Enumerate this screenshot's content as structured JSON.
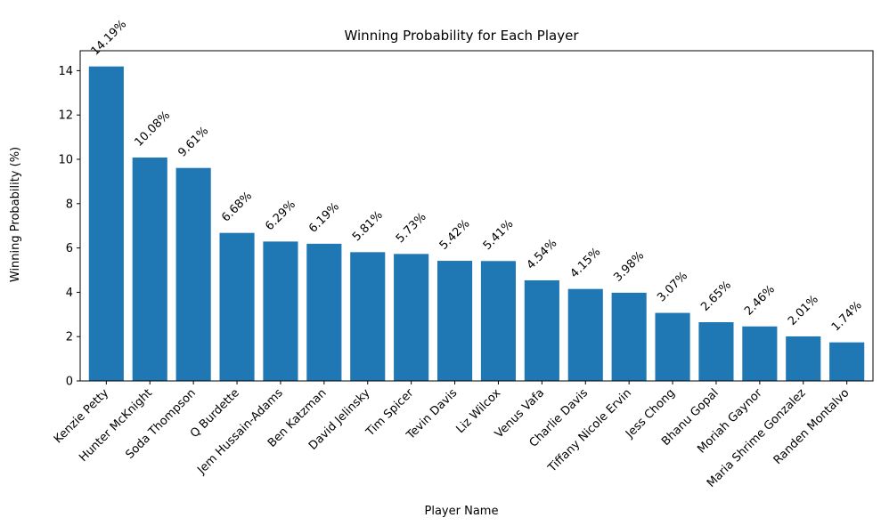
{
  "chart_data": {
    "type": "bar",
    "title": "Winning Probability for Each Player",
    "xlabel": "Player Name",
    "ylabel": "Winning Probability (%)",
    "ylim": [
      0,
      14.9
    ],
    "yticks": [
      0,
      2,
      4,
      6,
      8,
      10,
      12,
      14
    ],
    "grid": false,
    "bar_color": "#1f77b4",
    "categories": [
      "Kenzie Petty",
      "Hunter McKnight",
      "Soda Thompson",
      "Q Burdette",
      "Jem Hussain-Adams",
      "Ben Katzman",
      "David Jelinsky",
      "Tim Spicer",
      "Tevin Davis",
      "Liz Wilcox",
      "Venus Vafa",
      "Charlie Davis",
      "Tiffany Nicole Ervin",
      "Jess Chong",
      "Bhanu Gopal",
      "Moriah Gaynor",
      "Maria Shrime Gonzalez",
      "Randen Montalvo"
    ],
    "values": [
      14.19,
      10.08,
      9.61,
      6.68,
      6.29,
      6.19,
      5.81,
      5.73,
      5.42,
      5.41,
      4.54,
      4.15,
      3.98,
      3.07,
      2.65,
      2.46,
      2.01,
      1.74
    ],
    "value_labels": [
      "14.19%",
      "10.08%",
      "9.61%",
      "6.68%",
      "6.29%",
      "6.19%",
      "5.81%",
      "5.73%",
      "5.42%",
      "5.41%",
      "4.54%",
      "4.15%",
      "3.98%",
      "3.07%",
      "2.65%",
      "2.46%",
      "2.01%",
      "1.74%"
    ]
  }
}
